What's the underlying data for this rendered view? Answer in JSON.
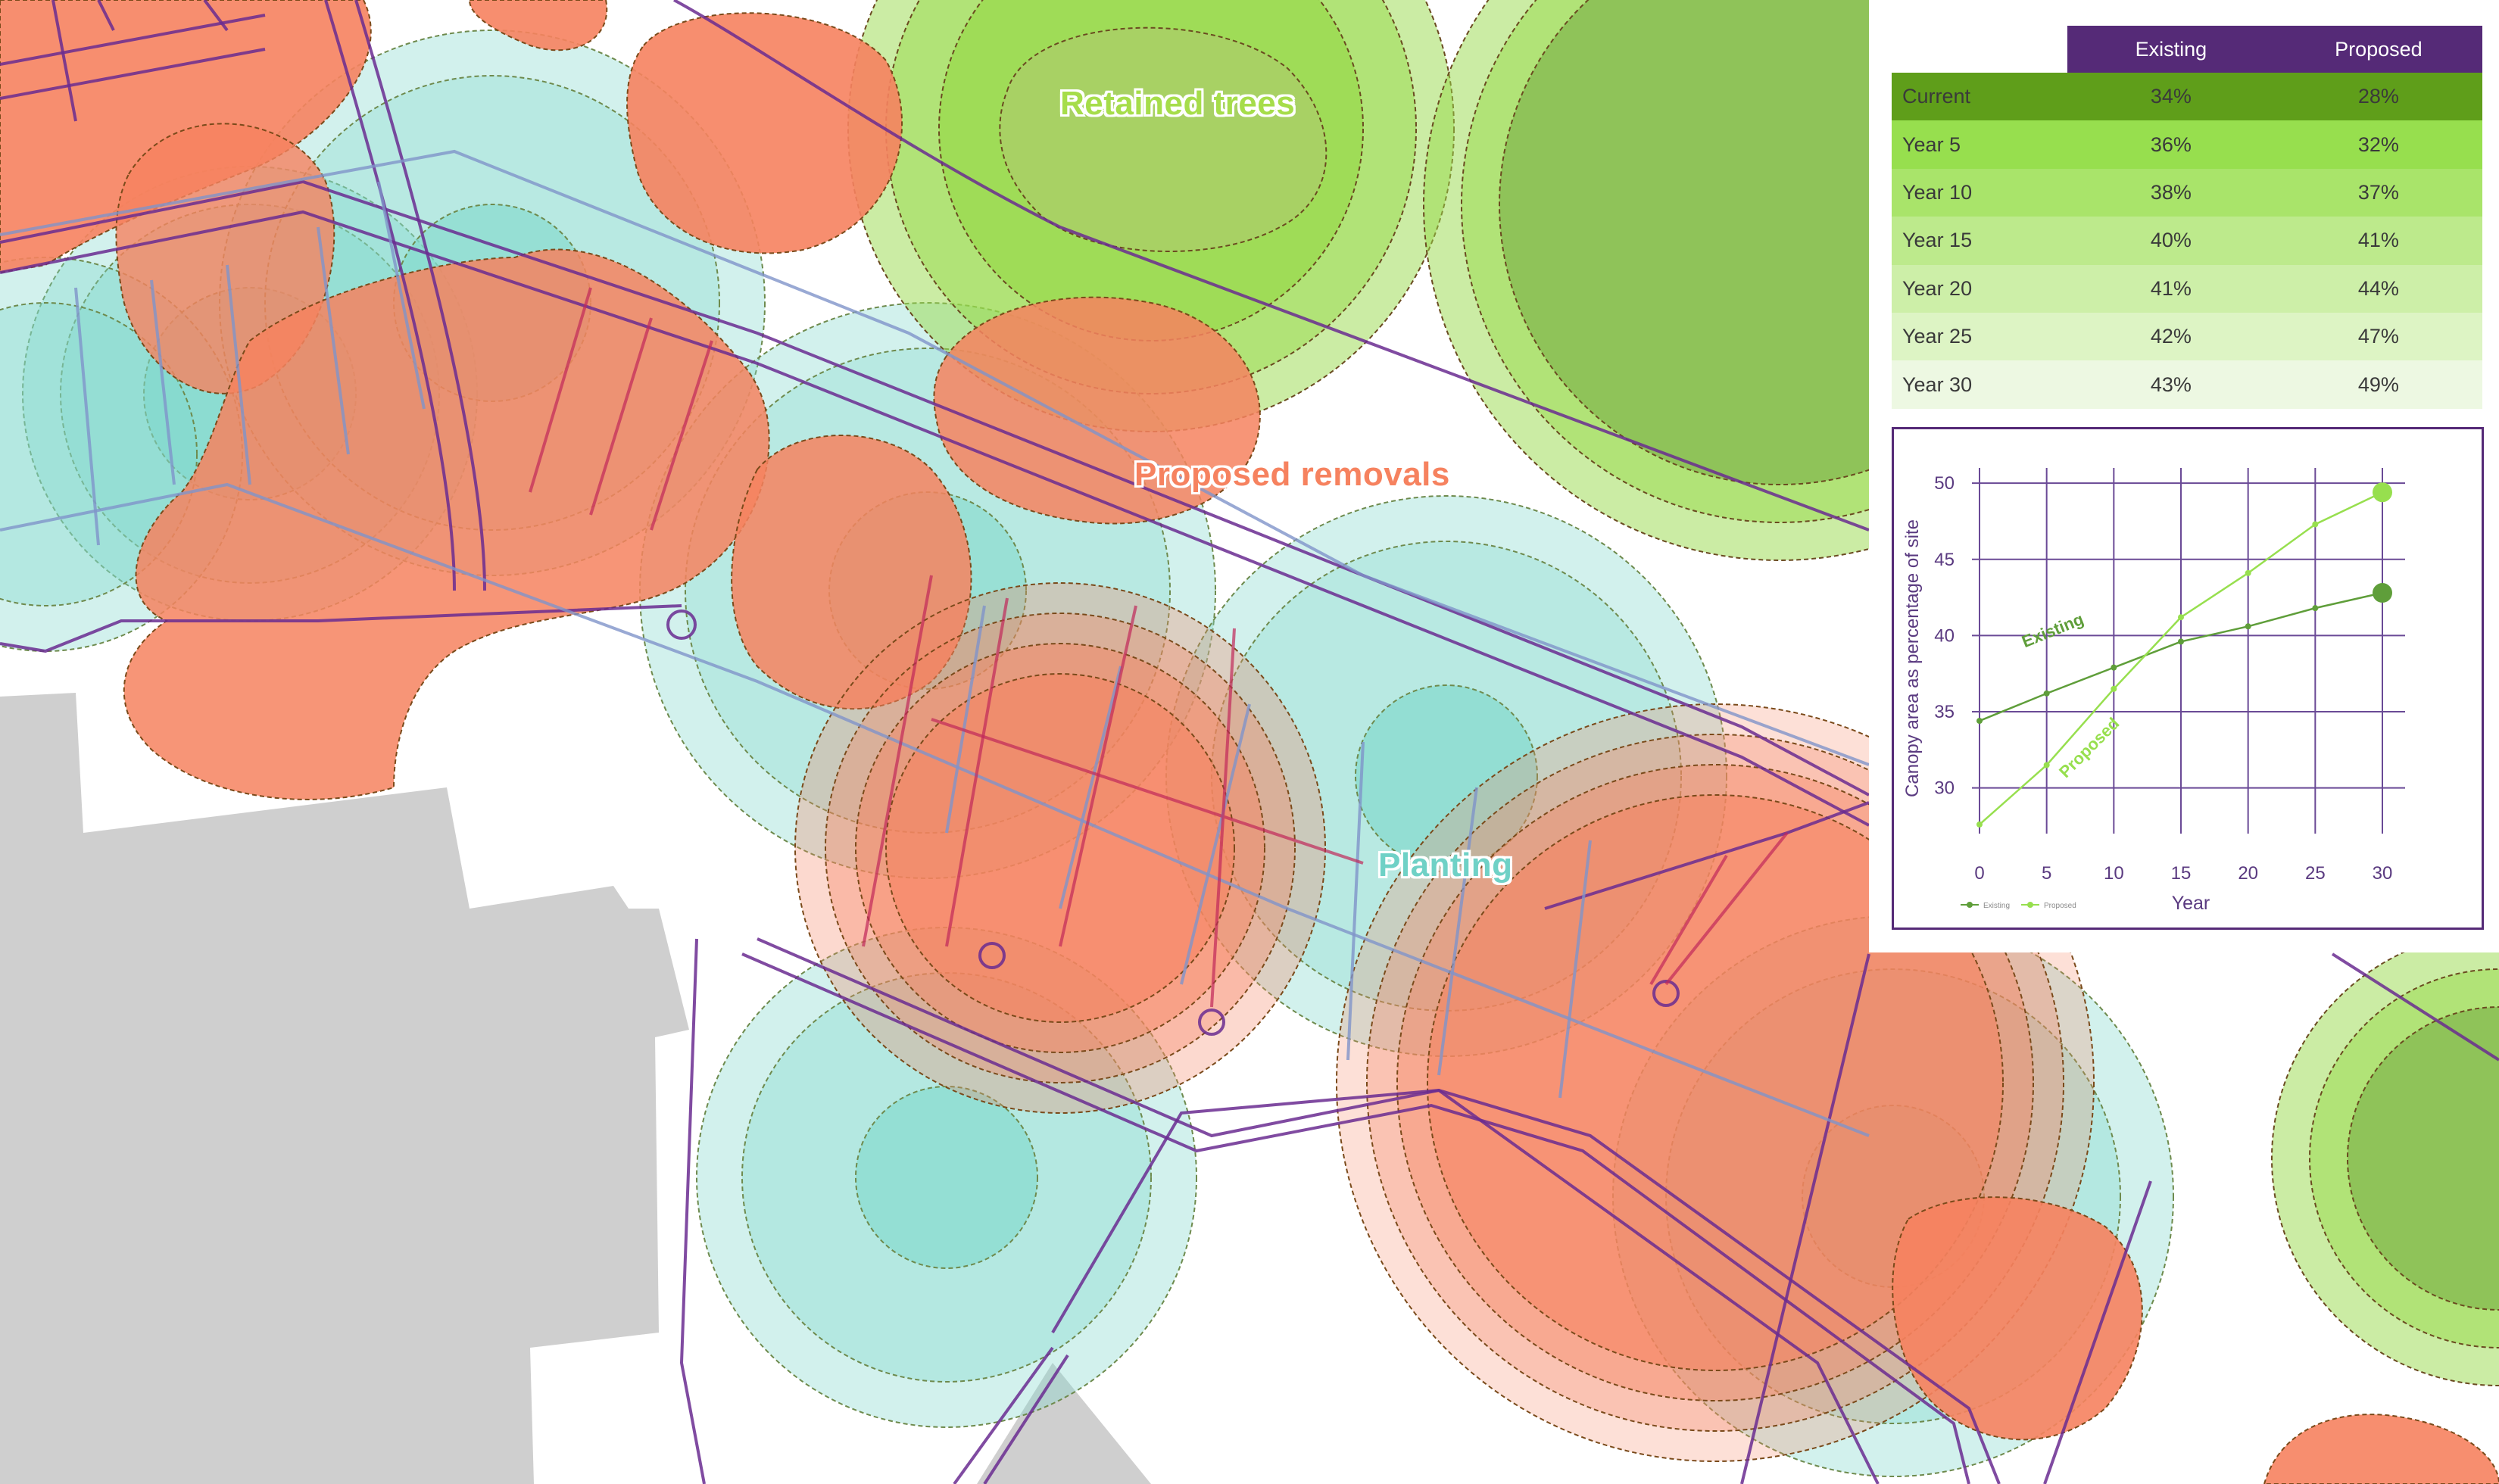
{
  "map": {
    "labels": {
      "retained": "Retained trees",
      "removals": "Proposed removals",
      "planting": "Planting"
    },
    "colors": {
      "retained": "#97d94a",
      "retained_dark": "#8cbf55",
      "removals": "#f6825f",
      "planting": "#7fd8cb",
      "boundary": "#6a2c91",
      "building": "#cfcfcf"
    }
  },
  "table": {
    "columns": [
      "Existing",
      "Proposed"
    ],
    "rows": [
      {
        "label": "Current",
        "existing": "34%",
        "proposed": "28%"
      },
      {
        "label": "Year 5",
        "existing": "36%",
        "proposed": "32%"
      },
      {
        "label": "Year 10",
        "existing": "38%",
        "proposed": "37%"
      },
      {
        "label": "Year 15",
        "existing": "40%",
        "proposed": "41%"
      },
      {
        "label": "Year 20",
        "existing": "41%",
        "proposed": "44%"
      },
      {
        "label": "Year 25",
        "existing": "42%",
        "proposed": "47%"
      },
      {
        "label": "Year 30",
        "existing": "43%",
        "proposed": "49%"
      }
    ],
    "row_colors": [
      "#5f9e1a",
      "#97df4e",
      "#a9e46a",
      "#bdea8c",
      "#cdefa8",
      "#ddf4c4",
      "#edf8e2"
    ],
    "header_color": "#552a77"
  },
  "chart_data": {
    "type": "line",
    "xlabel": "Year",
    "ylabel": "Canopy area as percentage of site",
    "x": [
      0,
      5,
      10,
      15,
      20,
      25,
      30
    ],
    "xlim": [
      0,
      30
    ],
    "ylim": [
      27,
      51
    ],
    "yticks": [
      30,
      35,
      40,
      45,
      50
    ],
    "grid": true,
    "series": [
      {
        "name": "Existing",
        "color": "#5f9e3a",
        "values": [
          34.4,
          36.2,
          37.9,
          39.6,
          40.6,
          41.8,
          42.8
        ]
      },
      {
        "name": "Proposed",
        "color": "#97df4e",
        "values": [
          27.6,
          31.5,
          36.5,
          41.2,
          44.1,
          47.3,
          49.4
        ]
      }
    ],
    "legend_labels": [
      "Existing",
      "Proposed"
    ],
    "inline_labels": [
      "Existing",
      "Proposed"
    ]
  }
}
